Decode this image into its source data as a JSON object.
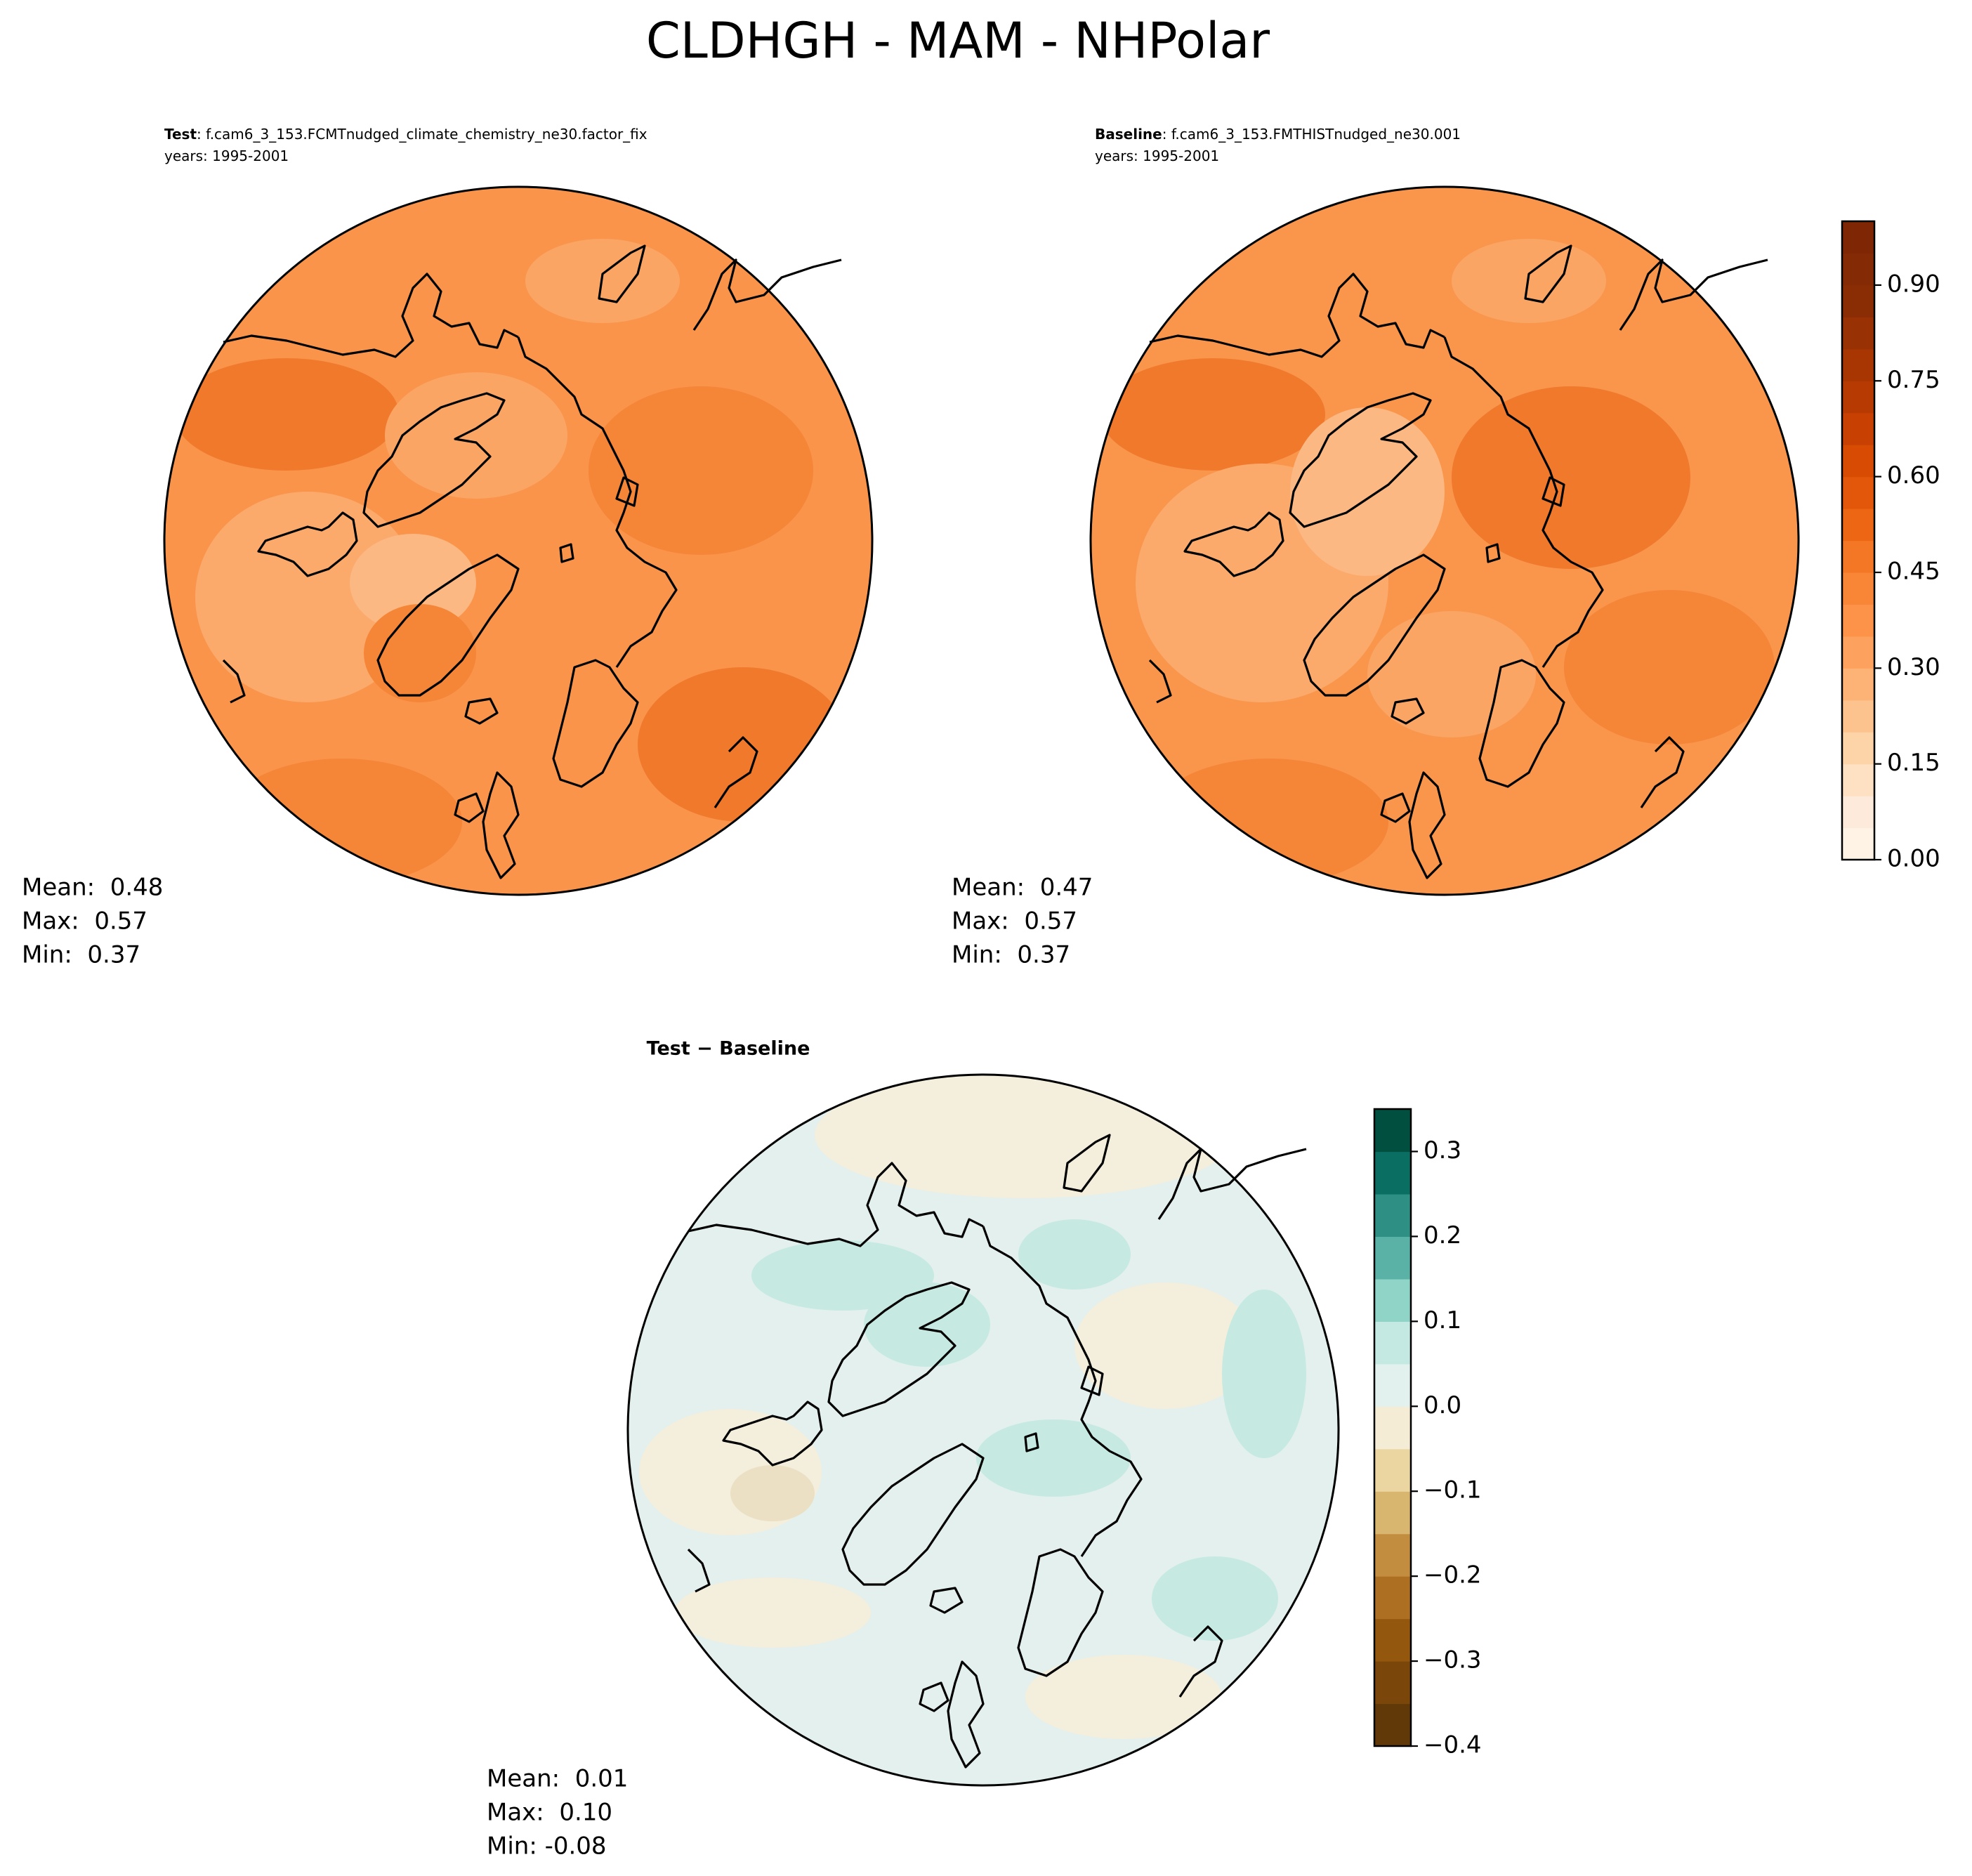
{
  "title": "CLDHGH - MAM - NHPolar",
  "chart_data": [
    {
      "type": "map",
      "name": "Test",
      "case": ": f.cam6_3_153.FCMTnudged_climate_chemistry_ne30.factor_fix",
      "years": "years: 1995-2001",
      "stats": [
        "Mean:  0.48",
        "Max:  0.57",
        "Min:  0.37"
      ]
    },
    {
      "type": "map",
      "name": "Baseline",
      "case": ": f.cam6_3_153.FMTHISTnudged_ne30.001",
      "years": "years: 1995-2001",
      "stats": [
        "Mean:  0.47",
        "Max:  0.57",
        "Min:  0.37"
      ],
      "colorbar": {
        "ylim": [
          0,
          1.0
        ],
        "yticks": [
          {
            "value": 0,
            "label": "0.00"
          },
          {
            "value": 0.15,
            "label": "0.15"
          },
          {
            "value": 0.3,
            "label": "0.30"
          },
          {
            "value": 0.45,
            "label": "0.45"
          },
          {
            "value": 0.6,
            "label": "0.60"
          },
          {
            "value": 0.75,
            "label": "0.75"
          },
          {
            "value": 0.9,
            "label": "0.90"
          }
        ],
        "colors": [
          "#fff3e6",
          "#feeada",
          "#fee0c3",
          "#fdd3a8",
          "#fdc38e",
          "#fdb376",
          "#fda25e",
          "#fc9349",
          "#f98637",
          "#f47726",
          "#ec6614",
          "#e3570a",
          "#d84b03",
          "#c94102",
          "#b73a03",
          "#a73603",
          "#983103",
          "#8b2d04",
          "#842a04",
          "#7f2704"
        ]
      }
    },
    {
      "type": "map",
      "title": "Test − Baseline",
      "stats": [
        "Mean:  0.01",
        "Max:  0.10",
        "Min: -0.08"
      ],
      "colorbar": {
        "ylim": [
          -0.4,
          0.35
        ],
        "yticks": [
          {
            "value": -0.4,
            "label": "−0.4"
          },
          {
            "value": -0.3,
            "label": "−0.3"
          },
          {
            "value": -0.2,
            "label": "−0.2"
          },
          {
            "value": -0.1,
            "label": "−0.1"
          },
          {
            "value": 0,
            "label": "0.0"
          },
          0.1,
          0.2,
          0.3
        ],
        "colors": [
          "#613807",
          "#7a4609",
          "#94570e",
          "#ad6f22",
          "#c38d40",
          "#d9b66f",
          "#ebd6a1",
          "#f5ecd6",
          "#e3f1ee",
          "#c4e9e2",
          "#8fd4c6",
          "#5ab1a5",
          "#2e8f85",
          "#0b6e62",
          "#01503f"
        ]
      }
    }
  ]
}
